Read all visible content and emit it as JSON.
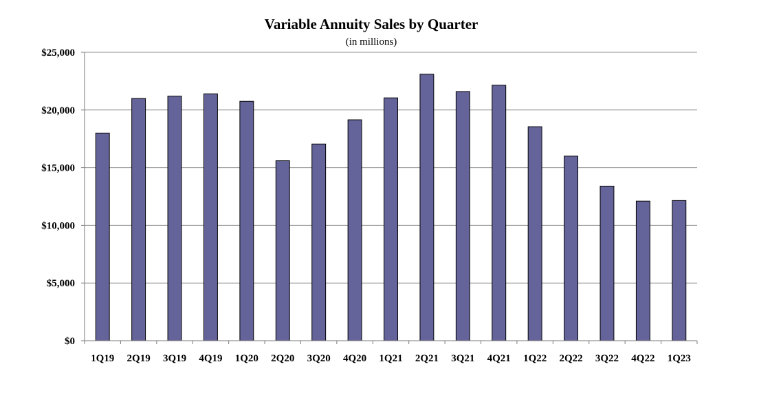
{
  "chart_data": {
    "type": "bar",
    "title": "Variable Annuity Sales by Quarter",
    "subtitle": "(in millions)",
    "xlabel": "",
    "ylabel": "",
    "categories": [
      "1Q19",
      "2Q19",
      "3Q19",
      "4Q19",
      "1Q20",
      "2Q20",
      "3Q20",
      "4Q20",
      "1Q21",
      "2Q21",
      "3Q21",
      "4Q21",
      "1Q22",
      "2Q22",
      "3Q22",
      "4Q22",
      "1Q23"
    ],
    "values": [
      18000,
      21000,
      21200,
      21400,
      20750,
      15600,
      17050,
      19150,
      21050,
      23100,
      21600,
      22150,
      18550,
      16000,
      13400,
      12100,
      12150
    ],
    "ylim": [
      0,
      25000
    ],
    "yticks": [
      0,
      5000,
      10000,
      15000,
      20000,
      25000
    ],
    "ytick_labels": [
      "$0",
      "$5,000",
      "$10,000",
      "$15,000",
      "$20,000",
      "$25,000"
    ],
    "grid": true,
    "legend": "none",
    "bar_color": "#65649a"
  }
}
